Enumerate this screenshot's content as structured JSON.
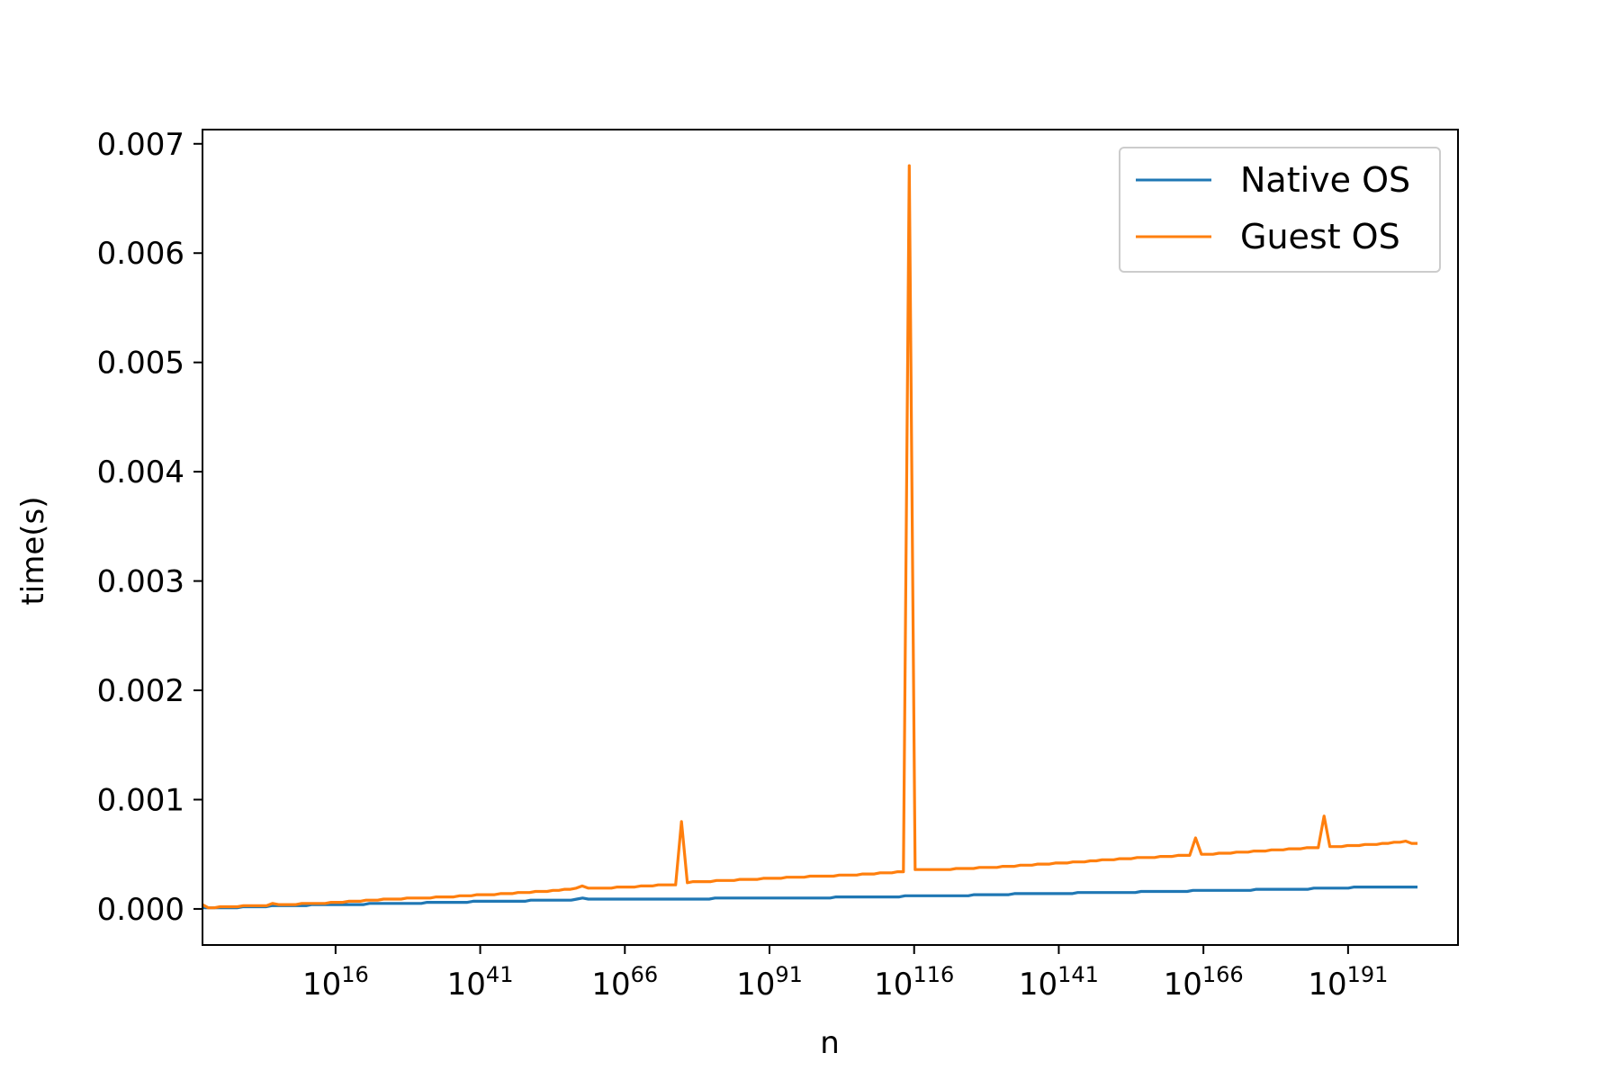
{
  "chart_data": {
    "type": "line",
    "title": "",
    "xlabel": "n",
    "ylabel": "time(s)",
    "x_scale": "log",
    "x_exponent_range": [
      -7,
      203
    ],
    "xlim_exponent": [
      -7,
      210
    ],
    "ylim": [
      -0.00033,
      0.00713
    ],
    "grid": false,
    "legend_placement": "top-right",
    "x_tick_exponents": [
      16,
      41,
      66,
      91,
      116,
      141,
      166,
      191
    ],
    "x_tick_base": "10",
    "x_tick_labels": [
      "16",
      "41",
      "66",
      "91",
      "116",
      "141",
      "166",
      "191"
    ],
    "y_ticks": [
      0,
      0.001,
      0.002,
      0.003,
      0.004,
      0.005,
      0.006,
      0.007
    ],
    "y_tick_labels": [
      "0.000",
      "0.001",
      "0.002",
      "0.003",
      "0.004",
      "0.005",
      "0.006",
      "0.007"
    ],
    "series": [
      {
        "name": "Native OS",
        "color": "#1f77b4",
        "y": [
          1e-05,
          1e-05,
          1e-05,
          1e-05,
          1e-05,
          1e-05,
          1e-05,
          2e-05,
          2e-05,
          2e-05,
          2e-05,
          2e-05,
          3e-05,
          3e-05,
          3e-05,
          3e-05,
          3e-05,
          3e-05,
          3e-05,
          4e-05,
          4e-05,
          4e-05,
          4e-05,
          4e-05,
          4e-05,
          4e-05,
          4e-05,
          4e-05,
          4e-05,
          5e-05,
          5e-05,
          5e-05,
          5e-05,
          5e-05,
          5e-05,
          5e-05,
          5e-05,
          5e-05,
          5e-05,
          6e-05,
          6e-05,
          6e-05,
          6e-05,
          6e-05,
          6e-05,
          6e-05,
          6e-05,
          7e-05,
          7e-05,
          7e-05,
          7e-05,
          7e-05,
          7e-05,
          7e-05,
          7e-05,
          7e-05,
          7e-05,
          8e-05,
          8e-05,
          8e-05,
          8e-05,
          8e-05,
          8e-05,
          8e-05,
          8e-05,
          9e-05,
          0.0001,
          9e-05,
          9e-05,
          9e-05,
          9e-05,
          9e-05,
          9e-05,
          9e-05,
          9e-05,
          9e-05,
          9e-05,
          9e-05,
          9e-05,
          9e-05,
          9e-05,
          9e-05,
          9e-05,
          9e-05,
          9e-05,
          9e-05,
          9e-05,
          9e-05,
          9e-05,
          0.0001,
          0.0001,
          0.0001,
          0.0001,
          0.0001,
          0.0001,
          0.0001,
          0.0001,
          0.0001,
          0.0001,
          0.0001,
          0.0001,
          0.0001,
          0.0001,
          0.0001,
          0.0001,
          0.0001,
          0.0001,
          0.0001,
          0.0001,
          0.0001,
          0.00011,
          0.00011,
          0.00011,
          0.00011,
          0.00011,
          0.00011,
          0.00011,
          0.00011,
          0.00011,
          0.00011,
          0.00011,
          0.00011,
          0.00012,
          0.00012,
          0.00012,
          0.00012,
          0.00012,
          0.00012,
          0.00012,
          0.00012,
          0.00012,
          0.00012,
          0.00012,
          0.00012,
          0.00013,
          0.00013,
          0.00013,
          0.00013,
          0.00013,
          0.00013,
          0.00013,
          0.00014,
          0.00014,
          0.00014,
          0.00014,
          0.00014,
          0.00014,
          0.00014,
          0.00014,
          0.00014,
          0.00014,
          0.00014,
          0.00015,
          0.00015,
          0.00015,
          0.00015,
          0.00015,
          0.00015,
          0.00015,
          0.00015,
          0.00015,
          0.00015,
          0.00015,
          0.00016,
          0.00016,
          0.00016,
          0.00016,
          0.00016,
          0.00016,
          0.00016,
          0.00016,
          0.00016,
          0.00017,
          0.00017,
          0.00017,
          0.00017,
          0.00017,
          0.00017,
          0.00017,
          0.00017,
          0.00017,
          0.00017,
          0.00017,
          0.00018,
          0.00018,
          0.00018,
          0.00018,
          0.00018,
          0.00018,
          0.00018,
          0.00018,
          0.00018,
          0.00018,
          0.00019,
          0.00019,
          0.00019,
          0.00019,
          0.00019,
          0.00019,
          0.00019,
          0.0002,
          0.0002,
          0.0002,
          0.0002,
          0.0002,
          0.0002,
          0.0002,
          0.0002,
          0.0002,
          0.0002,
          0.0002,
          0.0002
        ]
      },
      {
        "name": "Guest OS",
        "color": "#ff7f0e",
        "y": [
          4e-05,
          1e-05,
          1e-05,
          2e-05,
          2e-05,
          2e-05,
          2e-05,
          3e-05,
          3e-05,
          3e-05,
          3e-05,
          3e-05,
          5e-05,
          4e-05,
          4e-05,
          4e-05,
          4e-05,
          5e-05,
          5e-05,
          5e-05,
          5e-05,
          5e-05,
          6e-05,
          6e-05,
          6e-05,
          7e-05,
          7e-05,
          7e-05,
          8e-05,
          8e-05,
          8e-05,
          9e-05,
          9e-05,
          9e-05,
          9e-05,
          0.0001,
          0.0001,
          0.0001,
          0.0001,
          0.0001,
          0.00011,
          0.00011,
          0.00011,
          0.00011,
          0.00012,
          0.00012,
          0.00012,
          0.00013,
          0.00013,
          0.00013,
          0.00013,
          0.00014,
          0.00014,
          0.00014,
          0.00015,
          0.00015,
          0.00015,
          0.00016,
          0.00016,
          0.00016,
          0.00017,
          0.00017,
          0.00018,
          0.00018,
          0.00019,
          0.00021,
          0.00019,
          0.00019,
          0.00019,
          0.00019,
          0.00019,
          0.0002,
          0.0002,
          0.0002,
          0.0002,
          0.00021,
          0.00021,
          0.00021,
          0.00022,
          0.00022,
          0.00022,
          0.00022,
          0.0008,
          0.00024,
          0.00025,
          0.00025,
          0.00025,
          0.00025,
          0.00026,
          0.00026,
          0.00026,
          0.00026,
          0.00027,
          0.00027,
          0.00027,
          0.00027,
          0.00028,
          0.00028,
          0.00028,
          0.00028,
          0.00029,
          0.00029,
          0.00029,
          0.00029,
          0.0003,
          0.0003,
          0.0003,
          0.0003,
          0.0003,
          0.00031,
          0.00031,
          0.00031,
          0.00031,
          0.00032,
          0.00032,
          0.00032,
          0.00033,
          0.00033,
          0.00033,
          0.00034,
          0.00034,
          0.0068,
          0.00036,
          0.00036,
          0.00036,
          0.00036,
          0.00036,
          0.00036,
          0.00036,
          0.00037,
          0.00037,
          0.00037,
          0.00037,
          0.00038,
          0.00038,
          0.00038,
          0.00038,
          0.00039,
          0.00039,
          0.00039,
          0.0004,
          0.0004,
          0.0004,
          0.00041,
          0.00041,
          0.00041,
          0.00042,
          0.00042,
          0.00042,
          0.00043,
          0.00043,
          0.00043,
          0.00044,
          0.00044,
          0.00045,
          0.00045,
          0.00045,
          0.00046,
          0.00046,
          0.00046,
          0.00047,
          0.00047,
          0.00047,
          0.00047,
          0.00048,
          0.00048,
          0.00048,
          0.00049,
          0.00049,
          0.00049,
          0.00065,
          0.0005,
          0.0005,
          0.0005,
          0.00051,
          0.00051,
          0.00051,
          0.00052,
          0.00052,
          0.00052,
          0.00053,
          0.00053,
          0.00053,
          0.00054,
          0.00054,
          0.00054,
          0.00055,
          0.00055,
          0.00055,
          0.00056,
          0.00056,
          0.00056,
          0.00085,
          0.00057,
          0.00057,
          0.00057,
          0.00058,
          0.00058,
          0.00058,
          0.00059,
          0.00059,
          0.00059,
          0.0006,
          0.0006,
          0.00061,
          0.00061,
          0.00062,
          0.0006,
          0.0006
        ]
      }
    ]
  }
}
